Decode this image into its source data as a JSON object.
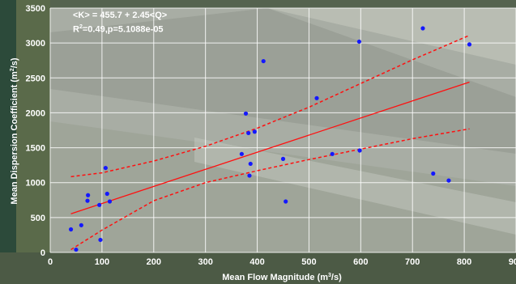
{
  "chart_data": {
    "type": "scatter",
    "annotations": {
      "equation": "<K> = 455.7 + 2.45<Q>",
      "stats_prefix": "R",
      "stats_sup": "2",
      "stats_suffix": "=0.49,p=5.1088e-05"
    },
    "xlabel": {
      "prefix": "Mean Flow Magnitude (m",
      "sup": "3",
      "suffix": "/s)"
    },
    "ylabel": {
      "prefix": "Mean Dispersion Coefficient (m",
      "sup": "2",
      "suffix": "/s)"
    },
    "xlim": [
      0,
      900
    ],
    "ylim": [
      0,
      3500
    ],
    "xticks": [
      0,
      100,
      200,
      300,
      400,
      500,
      600,
      700,
      800,
      900
    ],
    "yticks": [
      0,
      500,
      1000,
      1500,
      2000,
      2500,
      3000,
      3500
    ],
    "grid": true,
    "points": [
      {
        "x": 40,
        "y": 330
      },
      {
        "x": 50,
        "y": 40
      },
      {
        "x": 60,
        "y": 390
      },
      {
        "x": 72,
        "y": 740
      },
      {
        "x": 73,
        "y": 820
      },
      {
        "x": 95,
        "y": 680
      },
      {
        "x": 97,
        "y": 180
      },
      {
        "x": 107,
        "y": 1210
      },
      {
        "x": 110,
        "y": 840
      },
      {
        "x": 115,
        "y": 730
      },
      {
        "x": 370,
        "y": 1410
      },
      {
        "x": 378,
        "y": 1990
      },
      {
        "x": 383,
        "y": 1710
      },
      {
        "x": 385,
        "y": 1100
      },
      {
        "x": 387,
        "y": 1270
      },
      {
        "x": 395,
        "y": 1730
      },
      {
        "x": 412,
        "y": 2740
      },
      {
        "x": 450,
        "y": 1340
      },
      {
        "x": 455,
        "y": 730
      },
      {
        "x": 515,
        "y": 2210
      },
      {
        "x": 545,
        "y": 1410
      },
      {
        "x": 597,
        "y": 3020
      },
      {
        "x": 598,
        "y": 1460
      },
      {
        "x": 720,
        "y": 3210
      },
      {
        "x": 740,
        "y": 1130
      },
      {
        "x": 770,
        "y": 1030
      },
      {
        "x": 810,
        "y": 2980
      }
    ],
    "fit_line": {
      "intercept": 455.7,
      "slope": 2.45,
      "x_range": [
        40,
        810
      ]
    },
    "upper_ci": [
      {
        "x": 40,
        "y": 1085
      },
      {
        "x": 100,
        "y": 1140
      },
      {
        "x": 200,
        "y": 1310
      },
      {
        "x": 300,
        "y": 1520
      },
      {
        "x": 400,
        "y": 1780
      },
      {
        "x": 500,
        "y": 2080
      },
      {
        "x": 600,
        "y": 2420
      },
      {
        "x": 700,
        "y": 2760
      },
      {
        "x": 810,
        "y": 3110
      }
    ],
    "lower_ci": [
      {
        "x": 40,
        "y": 40
      },
      {
        "x": 100,
        "y": 320
      },
      {
        "x": 200,
        "y": 740
      },
      {
        "x": 300,
        "y": 1000
      },
      {
        "x": 400,
        "y": 1170
      },
      {
        "x": 500,
        "y": 1330
      },
      {
        "x": 600,
        "y": 1480
      },
      {
        "x": 700,
        "y": 1630
      },
      {
        "x": 810,
        "y": 1770
      }
    ],
    "colors": {
      "points": "#1418ff",
      "fit": "#ff1010",
      "ci": "#ff1010",
      "grid": "#ffffff",
      "text": "#ffffff"
    }
  }
}
